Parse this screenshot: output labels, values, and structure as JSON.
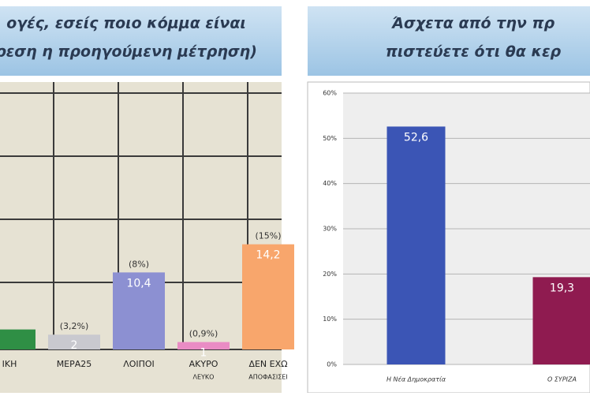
{
  "chart_data": [
    {
      "type": "bar",
      "title": [
        "ογές, εσείς ποιο κόμμα είναι",
        "ρεση η προηγούμενη μέτρηση)"
      ],
      "categories": [
        [
          "ΙΚΗ"
        ],
        [
          "ΜΕΡΑ25"
        ],
        [
          "ΛΟΙΠΟΙ"
        ],
        [
          "ΑΚΥΡΟ",
          "ΛΕΥΚΟ"
        ],
        [
          "ΔΕΝ ΕΧΩ",
          "ΑΠΟΦΑΣΙΣΕΙ"
        ]
      ],
      "values": [
        2.7,
        2,
        10.4,
        1,
        14.2
      ],
      "value_labels": [
        null,
        "2",
        "10,4",
        "1",
        "14,2"
      ],
      "previous_labels": [
        null,
        "(3,2%)",
        "(8%)",
        "(0,9%)",
        "(15%)"
      ],
      "colors": [
        "#2f8f45",
        "#c9c9cf",
        "#8c90d2",
        "#e98cc4",
        "#f8a66c"
      ],
      "ylim": [
        0,
        36
      ]
    },
    {
      "type": "bar",
      "title": [
        "Άσχετα από την πρ",
        "πιστεύετε ότι θα κερ"
      ],
      "categories": [
        "Η Νέα Δημοκρατία",
        "Ο ΣΥΡΙΖΑ"
      ],
      "values": [
        52.6,
        19.3
      ],
      "value_labels": [
        "52,6",
        "19,3"
      ],
      "colors": [
        "#3b55b5",
        "#8f1b50"
      ],
      "ylim": [
        0,
        60
      ],
      "yticks": [
        {
          "value": 0,
          "label": "0%"
        },
        {
          "value": 10,
          "label": "10%"
        },
        {
          "value": 20,
          "label": "20%"
        },
        {
          "value": 30,
          "label": "30%"
        },
        {
          "value": 40,
          "label": "40%"
        },
        {
          "value": 50,
          "label": "50%"
        },
        {
          "value": 60,
          "label": "60%"
        }
      ],
      "grid": true
    }
  ]
}
